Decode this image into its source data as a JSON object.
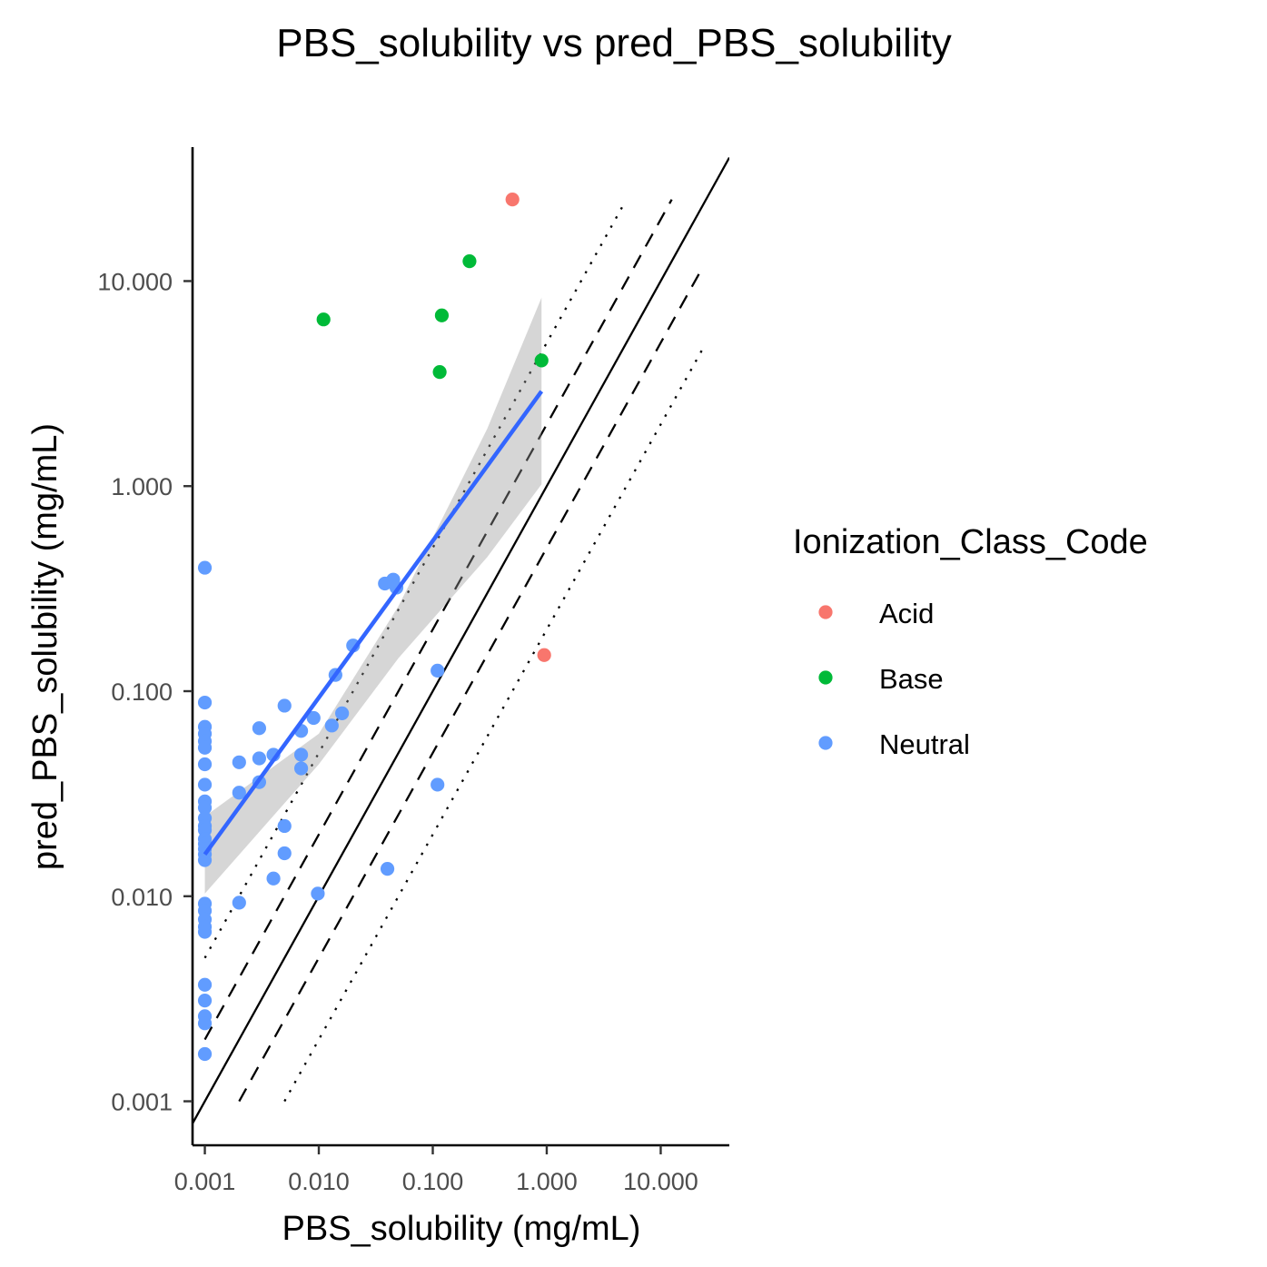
{
  "chart_data": {
    "type": "scatter",
    "title": "PBS_solubility vs pred_PBS_solubility",
    "xlabel": "PBS_solubility (mg/mL)",
    "ylabel": "pred_PBS_solubility (mg/mL)",
    "x_scale": "log10",
    "y_scale": "log10",
    "xlim": [
      0.00078,
      40
    ],
    "ylim": [
      0.00061,
      45
    ],
    "x_ticks": [
      0.001,
      0.01,
      0.1,
      1,
      10
    ],
    "x_tick_labels": [
      "0.001",
      "0.010",
      "0.100",
      "1.000",
      "10.000"
    ],
    "y_ticks": [
      0.001,
      0.01,
      0.1,
      1,
      10
    ],
    "y_tick_labels": [
      "0.001",
      "0.010",
      "0.100",
      "1.000",
      "10.000"
    ],
    "grid": false,
    "legend": {
      "title": "Ionization_Class_Code",
      "placement": "right",
      "entries": [
        {
          "label": "Acid",
          "color": "#F8766D"
        },
        {
          "label": "Base",
          "color": "#00BA38"
        },
        {
          "label": "Neutral",
          "color": "#619CFF"
        }
      ]
    },
    "series": [
      {
        "name": "Acid",
        "color": "#F8766D",
        "points": [
          [
            0.5,
            25
          ],
          [
            0.95,
            0.15
          ]
        ]
      },
      {
        "name": "Base",
        "color": "#00BA38",
        "points": [
          [
            0.011,
            6.5
          ],
          [
            0.12,
            6.8
          ],
          [
            0.21,
            12.5
          ],
          [
            0.115,
            3.6
          ],
          [
            0.9,
            4.1
          ]
        ]
      },
      {
        "name": "Neutral",
        "color": "#619CFF",
        "points": [
          [
            0.001,
            0.4
          ],
          [
            0.001,
            0.088
          ],
          [
            0.001,
            0.067
          ],
          [
            0.001,
            0.062
          ],
          [
            0.001,
            0.057
          ],
          [
            0.001,
            0.053
          ],
          [
            0.001,
            0.044
          ],
          [
            0.001,
            0.035
          ],
          [
            0.001,
            0.029
          ],
          [
            0.001,
            0.027
          ],
          [
            0.001,
            0.024
          ],
          [
            0.001,
            0.022
          ],
          [
            0.001,
            0.021
          ],
          [
            0.001,
            0.019
          ],
          [
            0.001,
            0.018
          ],
          [
            0.001,
            0.017
          ],
          [
            0.001,
            0.016
          ],
          [
            0.001,
            0.015
          ],
          [
            0.001,
            0.0092
          ],
          [
            0.001,
            0.0085
          ],
          [
            0.001,
            0.0077
          ],
          [
            0.001,
            0.0071
          ],
          [
            0.001,
            0.0067
          ],
          [
            0.001,
            0.0037
          ],
          [
            0.001,
            0.0031
          ],
          [
            0.001,
            0.0026
          ],
          [
            0.001,
            0.0024
          ],
          [
            0.001,
            0.0017
          ],
          [
            0.002,
            0.045
          ],
          [
            0.002,
            0.032
          ],
          [
            0.002,
            0.0093
          ],
          [
            0.003,
            0.066
          ],
          [
            0.003,
            0.047
          ],
          [
            0.003,
            0.036
          ],
          [
            0.004,
            0.049
          ],
          [
            0.004,
            0.0122
          ],
          [
            0.005,
            0.085
          ],
          [
            0.005,
            0.022
          ],
          [
            0.005,
            0.0162
          ],
          [
            0.007,
            0.064
          ],
          [
            0.007,
            0.049
          ],
          [
            0.007,
            0.042
          ],
          [
            0.009,
            0.074
          ],
          [
            0.0098,
            0.0103
          ],
          [
            0.013,
            0.068
          ],
          [
            0.014,
            0.12
          ],
          [
            0.016,
            0.078
          ],
          [
            0.02,
            0.167
          ],
          [
            0.038,
            0.335
          ],
          [
            0.045,
            0.35
          ],
          [
            0.048,
            0.32
          ],
          [
            0.04,
            0.0136
          ],
          [
            0.11,
            0.126
          ],
          [
            0.11,
            0.035
          ]
        ]
      }
    ],
    "fit_line": {
      "color": "#3366FF",
      "band_color": "#999999",
      "points": [
        [
          0.001,
          0.016
        ],
        [
          0.9,
          2.9
        ]
      ],
      "band_upper": [
        [
          0.001,
          0.0245
        ],
        [
          0.01,
          0.062
        ],
        [
          0.05,
          0.26
        ],
        [
          0.3,
          1.9
        ],
        [
          0.9,
          8.3
        ]
      ],
      "band_lower": [
        [
          0.001,
          0.0103
        ],
        [
          0.01,
          0.044
        ],
        [
          0.05,
          0.145
        ],
        [
          0.3,
          0.45
        ],
        [
          0.9,
          1.02
        ]
      ]
    },
    "reference_lines": [
      {
        "style": "solid",
        "ratio": 1,
        "x_range": [
          0.00078,
          40
        ]
      },
      {
        "style": "dashed",
        "ratio": 2,
        "x_range": [
          0.001,
          12.5
        ]
      },
      {
        "style": "dashed",
        "ratio": 0.5,
        "x_range": [
          0.002,
          23
        ]
      },
      {
        "style": "dotted",
        "ratio": 5,
        "x_range": [
          0.001,
          4.6
        ]
      },
      {
        "style": "dotted",
        "ratio": 0.2,
        "x_range": [
          0.005,
          23
        ]
      }
    ]
  }
}
